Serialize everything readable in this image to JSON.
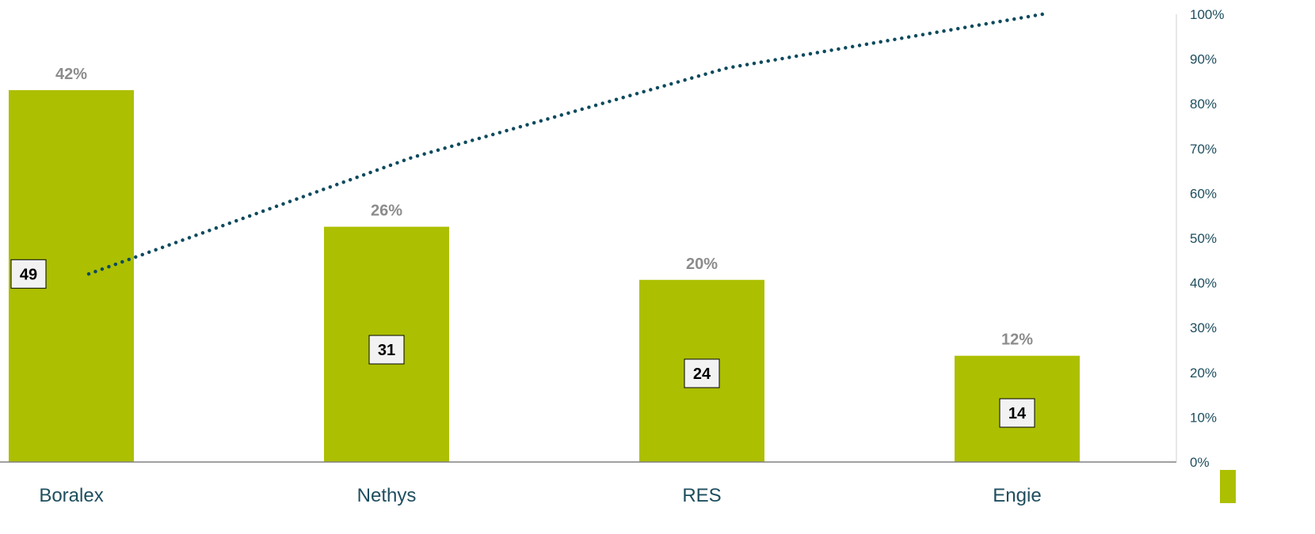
{
  "chart_data": {
    "type": "bar",
    "categories": [
      "Boralex",
      "Nethys",
      "RES",
      "Engie"
    ],
    "values": [
      49,
      31,
      24,
      14
    ],
    "share_labels": [
      "42%",
      "26%",
      "20%",
      "12%"
    ],
    "cumulative_pct": [
      42,
      68,
      88,
      100
    ],
    "y_left_range": [
      0,
      59
    ],
    "y2_ticks": [
      "0%",
      "10%",
      "20%",
      "30%",
      "40%",
      "50%",
      "60%",
      "70%",
      "80%",
      "90%",
      "100%"
    ],
    "y2_range": [
      0,
      100
    ],
    "grid": false,
    "colors": {
      "bar": "#acbf00",
      "line": "#0d4a5e",
      "category_text": "#1f4e5f",
      "share_text": "#8c8c8c",
      "value_box_fill": "#f2f2f2",
      "value_box_border": "#000000"
    }
  }
}
